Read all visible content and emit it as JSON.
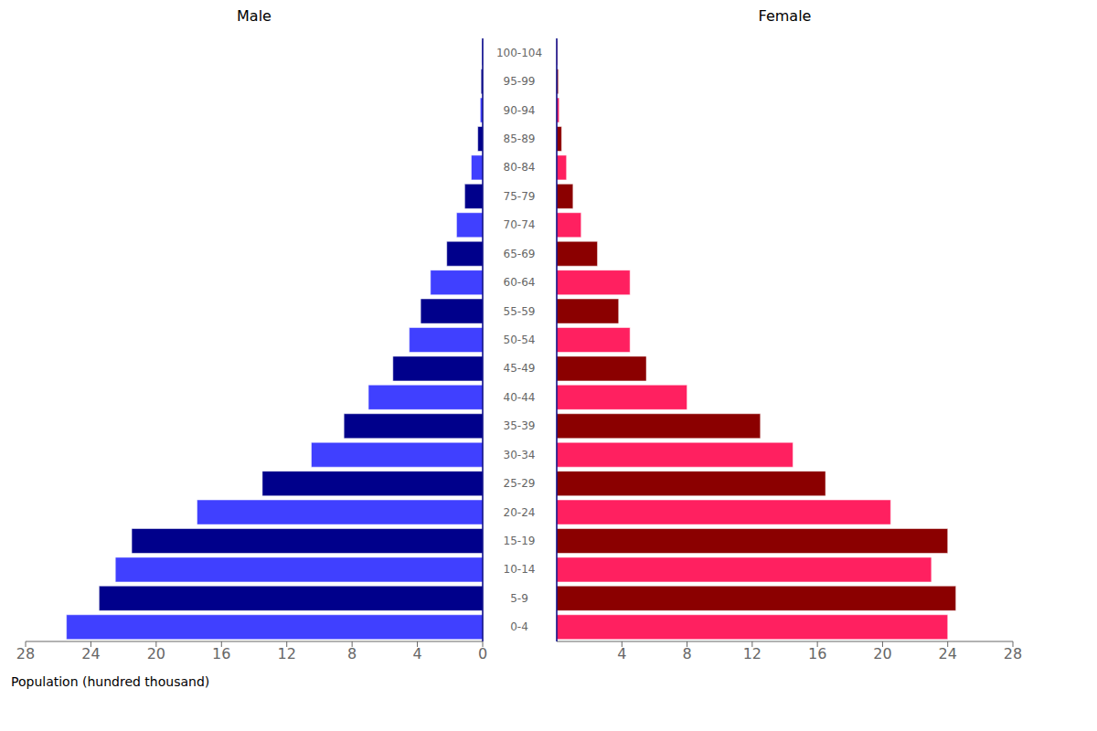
{
  "chart_data": {
    "type": "bar",
    "orientation": "horizontal",
    "xlabel": "Population (hundred thousand)",
    "categories": [
      "0-4",
      "5-9",
      "10-14",
      "15-19",
      "20-24",
      "25-29",
      "30-34",
      "35-39",
      "40-44",
      "45-49",
      "50-54",
      "55-59",
      "60-64",
      "65-69",
      "70-74",
      "75-79",
      "80-84",
      "85-89",
      "90-94",
      "95-99",
      "100-104"
    ],
    "series": [
      {
        "name": "Male",
        "colors": [
          "#4040FF",
          "#00008B",
          "#4040FF",
          "#00008B",
          "#4040FF",
          "#00008B",
          "#4040FF",
          "#00008B",
          "#4040FF",
          "#00008B",
          "#4040FF",
          "#00008B",
          "#4040FF",
          "#00008B",
          "#4040FF",
          "#00008B",
          "#4040FF",
          "#00008B",
          "#4040FF",
          "#00008B",
          "#4040FF"
        ],
        "values": [
          25.5,
          23.5,
          22.5,
          21.5,
          17.5,
          13.5,
          10.5,
          8.5,
          7.0,
          5.5,
          4.5,
          3.8,
          3.2,
          2.2,
          1.6,
          1.1,
          0.7,
          0.3,
          0.15,
          0.1,
          0.05
        ]
      },
      {
        "name": "Female",
        "colors": [
          "#FF2060",
          "#8B0000",
          "#FF2060",
          "#8B0000",
          "#FF2060",
          "#8B0000",
          "#FF2060",
          "#8B0000",
          "#FF2060",
          "#8B0000",
          "#FF2060",
          "#8B0000",
          "#FF2060",
          "#8B0000",
          "#FF2060",
          "#8B0000",
          "#FF2060",
          "#8B0000",
          "#FF2060",
          "#8B0000",
          "#FF2060"
        ],
        "values": [
          24.0,
          24.5,
          23.0,
          24.0,
          20.5,
          16.5,
          14.5,
          12.5,
          8.0,
          5.5,
          4.5,
          3.8,
          4.5,
          2.5,
          1.5,
          1.0,
          0.6,
          0.3,
          0.15,
          0.1,
          0.05
        ]
      }
    ],
    "xlim": [
      0,
      28
    ],
    "xticks": [
      0,
      4,
      8,
      12,
      16,
      20,
      24,
      28
    ],
    "grid": false
  }
}
